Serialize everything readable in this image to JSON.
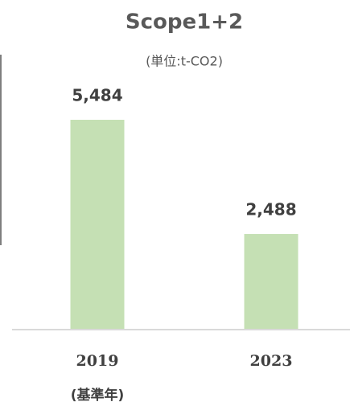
{
  "chart_data": {
    "type": "bar",
    "title": "Scope1+2",
    "subtitle": "(単位:t-CO2)",
    "categories": [
      "2019",
      "2023"
    ],
    "category_note": "(基準年)",
    "values": [
      5484,
      2488
    ],
    "value_labels": [
      "5,484",
      "2,488"
    ],
    "color": "#c5e0b4"
  }
}
